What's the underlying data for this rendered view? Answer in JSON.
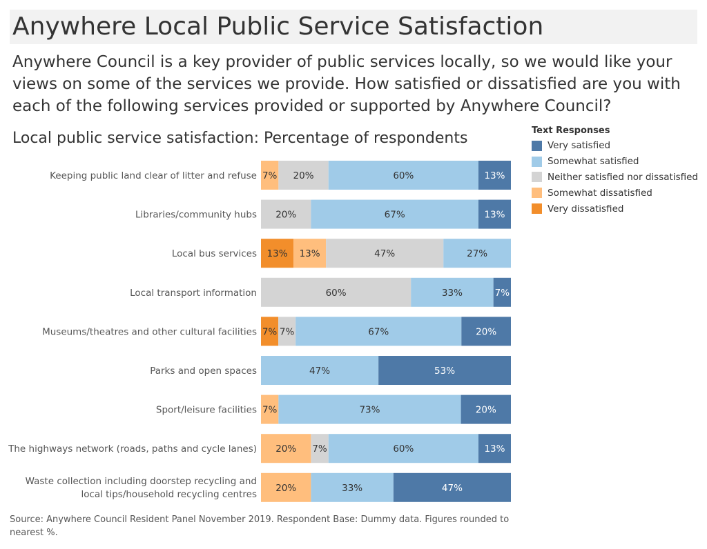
{
  "title": "Anywhere Local Public Service Satisfaction",
  "question": "Anywhere Council is a key provider of public services locally, so we would like your views on some of the services we provide. How satisfied or dissatisfied are you with each of the following services provided or supported by Anywhere Council?",
  "source": "Source: Anywhere Council Resident Panel November 2019. Respondent Base:  Dummy data. Figures rounded to nearest %.",
  "legend": {
    "title": "Text Responses",
    "items": [
      {
        "label": "Very satisfied",
        "color": "#4e79a7"
      },
      {
        "label": "Somewhat satisfied",
        "color": "#a0cbe8"
      },
      {
        "label": "Neither satisfied nor dissatisfied",
        "color": "#d4d4d4"
      },
      {
        "label": "Somewhat dissatisfied",
        "color": "#ffbe7d"
      },
      {
        "label": "Very dissatisfied",
        "color": "#f28e2b"
      }
    ]
  },
  "chart_data": {
    "type": "bar",
    "orientation": "horizontal",
    "stacked": true,
    "title": "Local public service satisfaction: Percentage of respondents",
    "categories": [
      "Keeping public land clear of litter and refuse",
      "Libraries/community hubs",
      "Local bus services",
      "Local transport information",
      "Museums/theatres and other cultural facilities",
      "Parks and open spaces",
      "Sport/leisure facilities",
      "The highways network (roads, paths and cycle lanes)",
      "Waste collection including doorstep recycling and local tips/household recycling centres"
    ],
    "series": [
      {
        "name": "Very dissatisfied",
        "color": "#f28e2b",
        "values": [
          0,
          0,
          13,
          0,
          7,
          0,
          0,
          0,
          0
        ]
      },
      {
        "name": "Somewhat dissatisfied",
        "color": "#ffbe7d",
        "values": [
          7,
          0,
          13,
          0,
          0,
          0,
          7,
          20,
          20
        ]
      },
      {
        "name": "Neither satisfied nor dissatisfied",
        "color": "#d4d4d4",
        "values": [
          20,
          20,
          47,
          60,
          7,
          0,
          0,
          7,
          0
        ]
      },
      {
        "name": "Somewhat satisfied",
        "color": "#a0cbe8",
        "values": [
          60,
          67,
          27,
          33,
          67,
          47,
          73,
          60,
          33
        ]
      },
      {
        "name": "Very satisfied",
        "color": "#4e79a7",
        "values": [
          13,
          13,
          0,
          7,
          20,
          53,
          20,
          13,
          47
        ]
      }
    ],
    "value_label_suffix": "%",
    "legend_position": "top-right",
    "grid": false
  }
}
